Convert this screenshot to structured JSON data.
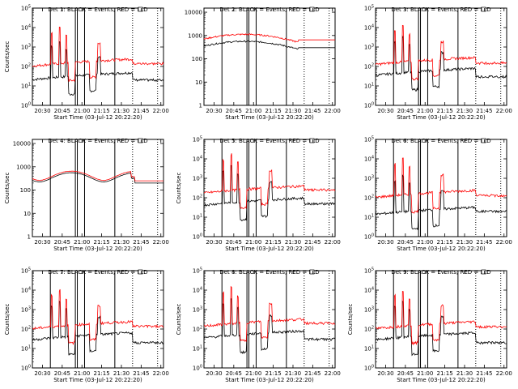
{
  "chart_data": [
    {
      "type": "line",
      "title": "Det 1: BLACK = Events, RED = LLD",
      "ylabel": "Counts/sec",
      "xlabel": "Start Time (03-Jul-12 20:22:20)",
      "x_ticks": [
        "20:30",
        "20:45",
        "21:00",
        "21:15",
        "21:30",
        "21:45",
        "22:00"
      ],
      "y_ticks": [
        "10^0",
        "10^1",
        "10^2",
        "10^3",
        "10^4",
        "10^5"
      ],
      "ylim": [
        1,
        100000
      ],
      "y_scale": "log",
      "profile": "spiky",
      "series": [
        {
          "color": "#000000",
          "start": 30,
          "end": 20
        },
        {
          "color": "#ff0000",
          "start": 150,
          "end": 140
        }
      ]
    },
    {
      "type": "line",
      "title": "Det 2: BLACK = Events, RED = LLD",
      "ylabel": "",
      "xlabel": "Start Time (03-Jul-12 20:22:20)",
      "x_ticks": [
        "20:30",
        "20:45",
        "21:00",
        "21:15",
        "21:30",
        "21:45",
        "22:00"
      ],
      "y_ticks": [
        "1",
        "10",
        "100",
        "1000",
        "10000"
      ],
      "ylim": [
        1,
        15000
      ],
      "y_scale": "log",
      "profile": "smooth",
      "series": [
        {
          "color": "#000000",
          "start": 350,
          "end": 300
        },
        {
          "color": "#ff0000",
          "start": 700,
          "end": 650
        }
      ]
    },
    {
      "type": "line",
      "title": "Det 3: BLACK = Events, RED = LLD",
      "ylabel": "",
      "xlabel": "Start Time (03-Jul-12 20:22:20)",
      "x_ticks": [
        "20:30",
        "20:45",
        "21:00",
        "21:15",
        "21:30",
        "21:45",
        "22:00"
      ],
      "y_ticks": [
        "10^0",
        "10^1",
        "10^2",
        "10^3",
        "10^4",
        "10^5"
      ],
      "ylim": [
        1,
        100000
      ],
      "y_scale": "log",
      "profile": "spiky",
      "series": [
        {
          "color": "#000000",
          "start": 50,
          "end": 30
        },
        {
          "color": "#ff0000",
          "start": 180,
          "end": 150
        }
      ]
    },
    {
      "type": "line",
      "title": "Det 4: BLACK = Events, RED = LLD",
      "ylabel": "Counts/sec",
      "xlabel": "Start Time (03-Jul-12 20:22:20)",
      "x_ticks": [
        "20:30",
        "20:45",
        "21:00",
        "21:15",
        "21:30",
        "21:45",
        "22:00"
      ],
      "y_ticks": [
        "1",
        "10",
        "100",
        "1000",
        "10000"
      ],
      "ylim": [
        1,
        15000
      ],
      "y_scale": "log",
      "profile": "wave",
      "series": [
        {
          "color": "#000000",
          "start": 300,
          "end": 200
        },
        {
          "color": "#ff0000",
          "start": 350,
          "end": 250
        }
      ]
    },
    {
      "type": "line",
      "title": "Det 5: BLACK = Events, RED = LLD",
      "ylabel": "Counts/sec",
      "xlabel": "Start Time (03-Jul-12 20:22:20)",
      "x_ticks": [
        "20:30",
        "20:45",
        "21:00",
        "21:15",
        "21:30",
        "21:45",
        "22:00"
      ],
      "y_ticks": [
        "10^0",
        "10^1",
        "10^2",
        "10^3",
        "10^4",
        "10^5"
      ],
      "ylim": [
        1,
        100000
      ],
      "y_scale": "log",
      "profile": "spiky",
      "series": [
        {
          "color": "#000000",
          "start": 60,
          "end": 50
        },
        {
          "color": "#ff0000",
          "start": 250,
          "end": 250
        }
      ]
    },
    {
      "type": "line",
      "title": "Det 6: BLACK = Events, RED = LLD",
      "ylabel": "",
      "xlabel": "Start Time (03-Jul-12 20:22:20)",
      "x_ticks": [
        "20:30",
        "20:45",
        "21:00",
        "21:15",
        "21:30",
        "21:45",
        "22:00"
      ],
      "y_ticks": [
        "10^0",
        "10^1",
        "10^2",
        "10^3",
        "10^4",
        "10^5"
      ],
      "ylim": [
        1,
        100000
      ],
      "y_scale": "log",
      "profile": "spiky",
      "series": [
        {
          "color": "#000000",
          "start": 20,
          "end": 20
        },
        {
          "color": "#ff0000",
          "start": 150,
          "end": 130
        }
      ]
    },
    {
      "type": "line",
      "title": "Det 7: BLACK = Events, RED = LLD",
      "ylabel": "Counts/sec",
      "xlabel": "Start Time (03-Jul-12 20:22:20)",
      "x_ticks": [
        "20:30",
        "20:45",
        "21:00",
        "21:15",
        "21:30",
        "21:45",
        "22:00"
      ],
      "y_ticks": [
        "10^0",
        "10^1",
        "10^2",
        "10^3",
        "10^4",
        "10^5"
      ],
      "ylim": [
        1,
        100000
      ],
      "y_scale": "log",
      "profile": "spiky",
      "series": [
        {
          "color": "#000000",
          "start": 40,
          "end": 20
        },
        {
          "color": "#ff0000",
          "start": 150,
          "end": 140
        }
      ]
    },
    {
      "type": "line",
      "title": "Det 8: BLACK = Events, RED = LLD",
      "ylabel": "Counts/sec",
      "xlabel": "Start Time (03-Jul-12 20:22:20)",
      "x_ticks": [
        "20:30",
        "20:45",
        "21:00",
        "21:15",
        "21:30",
        "21:45",
        "22:00"
      ],
      "y_ticks": [
        "10^0",
        "10^1",
        "10^2",
        "10^3",
        "10^4",
        "10^5"
      ],
      "ylim": [
        1,
        100000
      ],
      "y_scale": "log",
      "profile": "spiky",
      "series": [
        {
          "color": "#000000",
          "start": 50,
          "end": 30
        },
        {
          "color": "#ff0000",
          "start": 200,
          "end": 200
        }
      ]
    },
    {
      "type": "line",
      "title": "Det 9: BLACK = Events, RED = LLD",
      "ylabel": "Counts/sec",
      "xlabel": "Start Time (03-Jul-12 20:22:20)",
      "x_ticks": [
        "20:30",
        "20:45",
        "21:00",
        "21:15",
        "21:30",
        "21:45",
        "22:00"
      ],
      "y_ticks": [
        "10^0",
        "10^1",
        "10^2",
        "10^3",
        "10^4",
        "10^5"
      ],
      "ylim": [
        1,
        100000
      ],
      "y_scale": "log",
      "profile": "spiky",
      "series": [
        {
          "color": "#000000",
          "start": 40,
          "end": 20
        },
        {
          "color": "#ff0000",
          "start": 150,
          "end": 130
        }
      ]
    }
  ]
}
